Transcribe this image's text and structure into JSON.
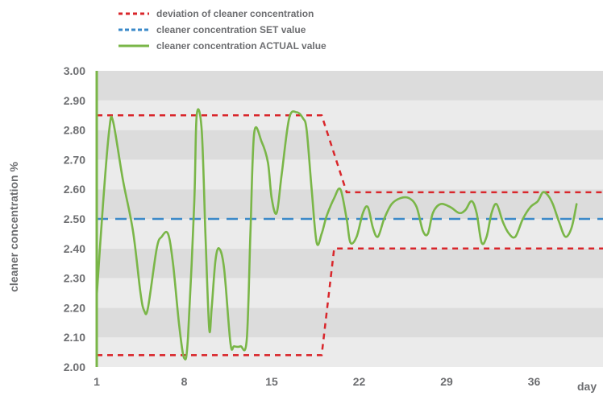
{
  "chart_data": {
    "type": "line",
    "xlabel": "day",
    "ylabel": "cleaner concentration %",
    "xlim": [
      1,
      42
    ],
    "ylim": [
      2.0,
      3.0
    ],
    "x_ticks": [
      1,
      8,
      15,
      22,
      29,
      36
    ],
    "y_ticks": [
      2.0,
      2.1,
      2.2,
      2.3,
      2.4,
      2.5,
      2.6,
      2.7,
      2.8,
      2.9,
      3.0
    ],
    "y_tick_labels": [
      "2.00",
      "2.10",
      "2.20",
      "2.30",
      "2.40",
      "2.50",
      "2.60",
      "2.70",
      "2.80",
      "2.90",
      "3.00"
    ],
    "grid": "alternating horizontal bands",
    "legend_position": "top-left",
    "legend": [
      {
        "label": "deviation of cleaner concentration",
        "style": "dotted",
        "color": "#d9262b"
      },
      {
        "label": "cleaner concentration SET value",
        "style": "dashed",
        "color": "#3a89c9"
      },
      {
        "label": "cleaner concentration ACTUAL value",
        "style": "solid",
        "color": "#7ab648"
      }
    ],
    "series": [
      {
        "name": "cleaner concentration SET value",
        "color": "#3a89c9",
        "points": [
          [
            1,
            2.5
          ],
          [
            42,
            2.5
          ]
        ]
      },
      {
        "name": "deviation of cleaner concentration",
        "color": "#d9262b",
        "segments": [
          [
            [
              1,
              2.85
            ],
            [
              19,
              2.85
            ],
            [
              21,
              2.59
            ],
            [
              42,
              2.59
            ]
          ],
          [
            [
              1,
              2.04
            ],
            [
              19,
              2.04
            ],
            [
              20,
              2.4
            ],
            [
              42,
              2.4
            ]
          ]
        ]
      },
      {
        "name": "cleaner concentration ACTUAL value",
        "color": "#7ab648",
        "points": [
          [
            1,
            2.24
          ],
          [
            1.5,
            2.55
          ],
          [
            2.0,
            2.8
          ],
          [
            2.3,
            2.83
          ],
          [
            3.1,
            2.63
          ],
          [
            3.9,
            2.46
          ],
          [
            4.5,
            2.25
          ],
          [
            4.8,
            2.19
          ],
          [
            5.1,
            2.2
          ],
          [
            5.8,
            2.4
          ],
          [
            6.2,
            2.44
          ],
          [
            6.7,
            2.45
          ],
          [
            7.1,
            2.35
          ],
          [
            7.6,
            2.14
          ],
          [
            8.0,
            2.03
          ],
          [
            8.3,
            2.1
          ],
          [
            8.8,
            2.55
          ],
          [
            9.0,
            2.85
          ],
          [
            9.4,
            2.8
          ],
          [
            9.7,
            2.45
          ],
          [
            10.0,
            2.13
          ],
          [
            10.2,
            2.2
          ],
          [
            10.5,
            2.36
          ],
          [
            10.8,
            2.4
          ],
          [
            11.2,
            2.33
          ],
          [
            11.7,
            2.08
          ],
          [
            12.0,
            2.07
          ],
          [
            12.5,
            2.07
          ],
          [
            13.0,
            2.09
          ],
          [
            13.3,
            2.45
          ],
          [
            13.6,
            2.79
          ],
          [
            14.2,
            2.76
          ],
          [
            14.7,
            2.69
          ],
          [
            15.0,
            2.57
          ],
          [
            15.4,
            2.52
          ],
          [
            15.8,
            2.65
          ],
          [
            16.4,
            2.84
          ],
          [
            17.0,
            2.86
          ],
          [
            17.5,
            2.84
          ],
          [
            17.8,
            2.8
          ],
          [
            18.2,
            2.6
          ],
          [
            18.6,
            2.42
          ],
          [
            19.0,
            2.45
          ],
          [
            19.4,
            2.51
          ],
          [
            20.0,
            2.57
          ],
          [
            20.5,
            2.6
          ],
          [
            21.0,
            2.5
          ],
          [
            21.3,
            2.42
          ],
          [
            21.8,
            2.44
          ],
          [
            22.3,
            2.52
          ],
          [
            22.7,
            2.54
          ],
          [
            23.1,
            2.47
          ],
          [
            23.5,
            2.44
          ],
          [
            24.0,
            2.5
          ],
          [
            24.6,
            2.55
          ],
          [
            25.3,
            2.57
          ],
          [
            26.0,
            2.57
          ],
          [
            26.6,
            2.54
          ],
          [
            27.1,
            2.46
          ],
          [
            27.5,
            2.45
          ],
          [
            27.9,
            2.52
          ],
          [
            28.5,
            2.55
          ],
          [
            29.3,
            2.54
          ],
          [
            30.0,
            2.52
          ],
          [
            30.5,
            2.53
          ],
          [
            31.0,
            2.56
          ],
          [
            31.4,
            2.52
          ],
          [
            31.8,
            2.42
          ],
          [
            32.2,
            2.44
          ],
          [
            32.6,
            2.52
          ],
          [
            33.0,
            2.55
          ],
          [
            33.5,
            2.49
          ],
          [
            34.0,
            2.45
          ],
          [
            34.5,
            2.44
          ],
          [
            35.1,
            2.5
          ],
          [
            35.7,
            2.54
          ],
          [
            36.3,
            2.56
          ],
          [
            36.7,
            2.59
          ],
          [
            37.1,
            2.58
          ],
          [
            37.5,
            2.55
          ],
          [
            38.0,
            2.49
          ],
          [
            38.5,
            2.44
          ],
          [
            39.0,
            2.47
          ],
          [
            39.4,
            2.55
          ]
        ]
      }
    ]
  }
}
